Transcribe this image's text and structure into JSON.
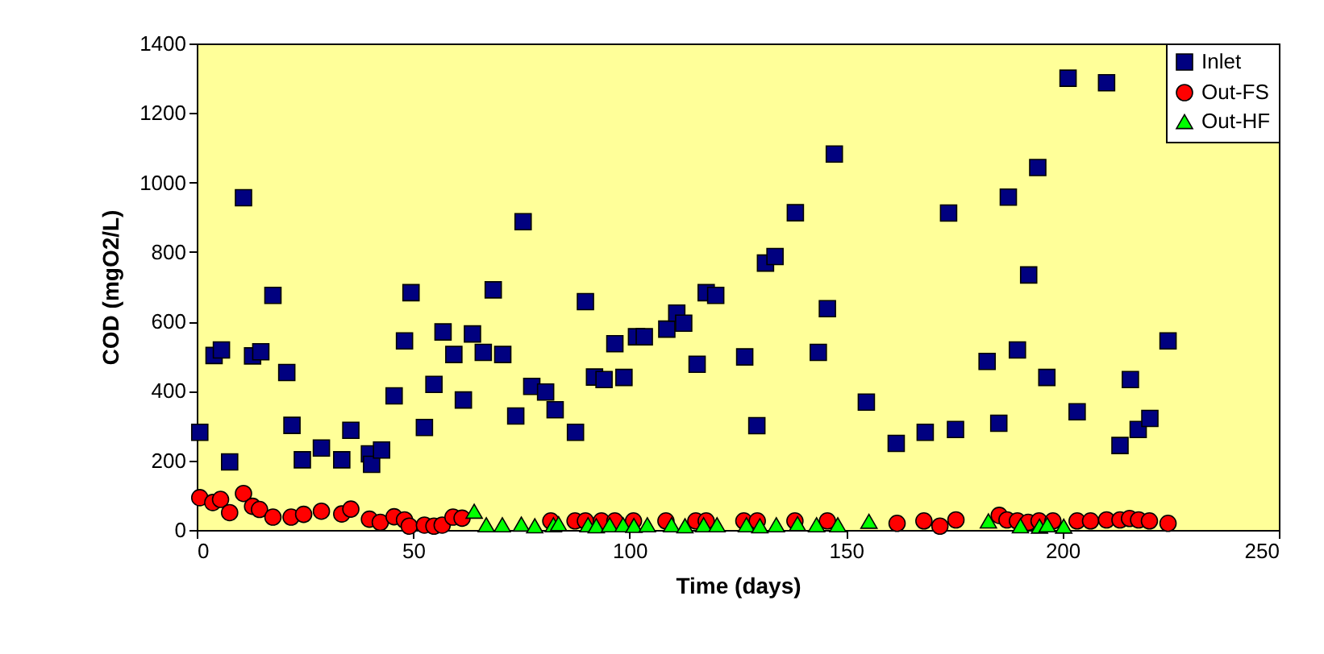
{
  "chart_data": {
    "type": "scatter",
    "xlabel": "Time (days)",
    "ylabel": "COD (mgO2/L)",
    "xlim": [
      0,
      250
    ],
    "xticks": [
      0,
      50,
      100,
      150,
      200,
      250
    ],
    "ylim": [
      0,
      1400
    ],
    "yticks": [
      0,
      200,
      400,
      600,
      800,
      1000,
      1200,
      1400
    ],
    "grid": false,
    "legend": "top right",
    "series": [
      {
        "name": "Inlet",
        "color": "#000080",
        "marker": "square",
        "x": [
          0.7,
          4,
          5.7,
          7.6,
          10.8,
          12.9,
          14.8,
          17.6,
          20.8,
          22,
          24.4,
          28.8,
          33.5,
          35.6,
          39.9,
          40.4,
          42.7,
          45.6,
          48,
          49.5,
          52.6,
          54.8,
          56.9,
          59.4,
          61.6,
          63.7,
          66.2,
          68.5,
          70.7,
          73.7,
          75.4,
          77.4,
          80.6,
          82.8,
          87.5,
          89.8,
          91.9,
          94.1,
          96.6,
          98.7,
          101.6,
          103.4,
          108.6,
          110.9,
          112.5,
          115.6,
          117.7,
          119.9,
          126.6,
          129.4,
          131.4,
          133.6,
          138.3,
          143.6,
          145.7,
          147.3,
          154.7,
          161.6,
          168.3,
          173.7,
          175.3,
          182.6,
          185.3,
          187.5,
          189.6,
          192.2,
          194.3,
          196.4,
          201.3,
          203.4,
          210.2,
          213.3,
          215.7,
          217.5,
          220.2,
          224.4
        ],
        "values": [
          281,
          502,
          518,
          196,
          956,
          501,
          513,
          675,
          453,
          301,
          202,
          236,
          202,
          287,
          219,
          189,
          230,
          386,
          544,
          683,
          295,
          419,
          570,
          505,
          374,
          564,
          511,
          691,
          505,
          328,
          887,
          413,
          397,
          346,
          281,
          657,
          440,
          433,
          536,
          439,
          556,
          556,
          578,
          624,
          595,
          477,
          683,
          675,
          498,
          300,
          768,
          787,
          913,
          511,
          637,
          1082,
          368,
          249,
          281,
          912,
          289,
          485,
          307,
          958,
          518,
          734,
          1043,
          439,
          1300,
          340,
          1287,
          243,
          433,
          289,
          321,
          544
        ]
      },
      {
        "name": "Out-FS",
        "color": "#ff0000",
        "marker": "circle",
        "x": [
          0.7,
          3.7,
          5.5,
          7.6,
          10.8,
          12.9,
          14.5,
          17.6,
          21.8,
          24.7,
          28.8,
          33.5,
          35.6,
          39.9,
          42.4,
          45.6,
          48,
          49.1,
          52.6,
          54.8,
          56.7,
          59.2,
          61.3,
          81.8,
          87.4,
          89.8,
          93.5,
          96.6,
          100.9,
          108.4,
          115.3,
          117.7,
          126.4,
          129.5,
          138.2,
          145.7,
          161.8,
          168,
          171.7,
          175.4,
          185.4,
          187.2,
          189.6,
          192.1,
          194.6,
          197.8,
          203.4,
          206.5,
          210.2,
          213.3,
          215.5,
          217.6,
          220.1,
          224.4
        ],
        "values": [
          93,
          79,
          88,
          50,
          105,
          68,
          59,
          37,
          37,
          45,
          54,
          46,
          60,
          31,
          22,
          38,
          29,
          11,
          14,
          11,
          14,
          37,
          34,
          26,
          26,
          26,
          26,
          26,
          26,
          26,
          26,
          26,
          26,
          26,
          26,
          26,
          19,
          26,
          11,
          29,
          42,
          29,
          26,
          22,
          26,
          26,
          26,
          26,
          29,
          29,
          33,
          29,
          26,
          19
        ]
      },
      {
        "name": "Out-HF",
        "color": "#00ff00",
        "marker": "triangle",
        "x": [
          64.1,
          66.9,
          70.6,
          75,
          78.1,
          82.4,
          83.6,
          90.4,
          92.3,
          95.4,
          98.5,
          101,
          104.1,
          109.7,
          112.8,
          117.1,
          120.2,
          127,
          130.1,
          133.9,
          138.8,
          143.2,
          148.1,
          155.3,
          182.9,
          190.3,
          194.7,
          196.5,
          200.3
        ],
        "values": [
          54,
          15,
          15,
          17,
          12,
          15,
          18,
          15,
          12,
          15,
          15,
          13,
          15,
          15,
          12,
          15,
          15,
          15,
          12,
          15,
          18,
          15,
          15,
          25,
          26,
          12,
          11,
          15,
          11
        ]
      }
    ]
  }
}
